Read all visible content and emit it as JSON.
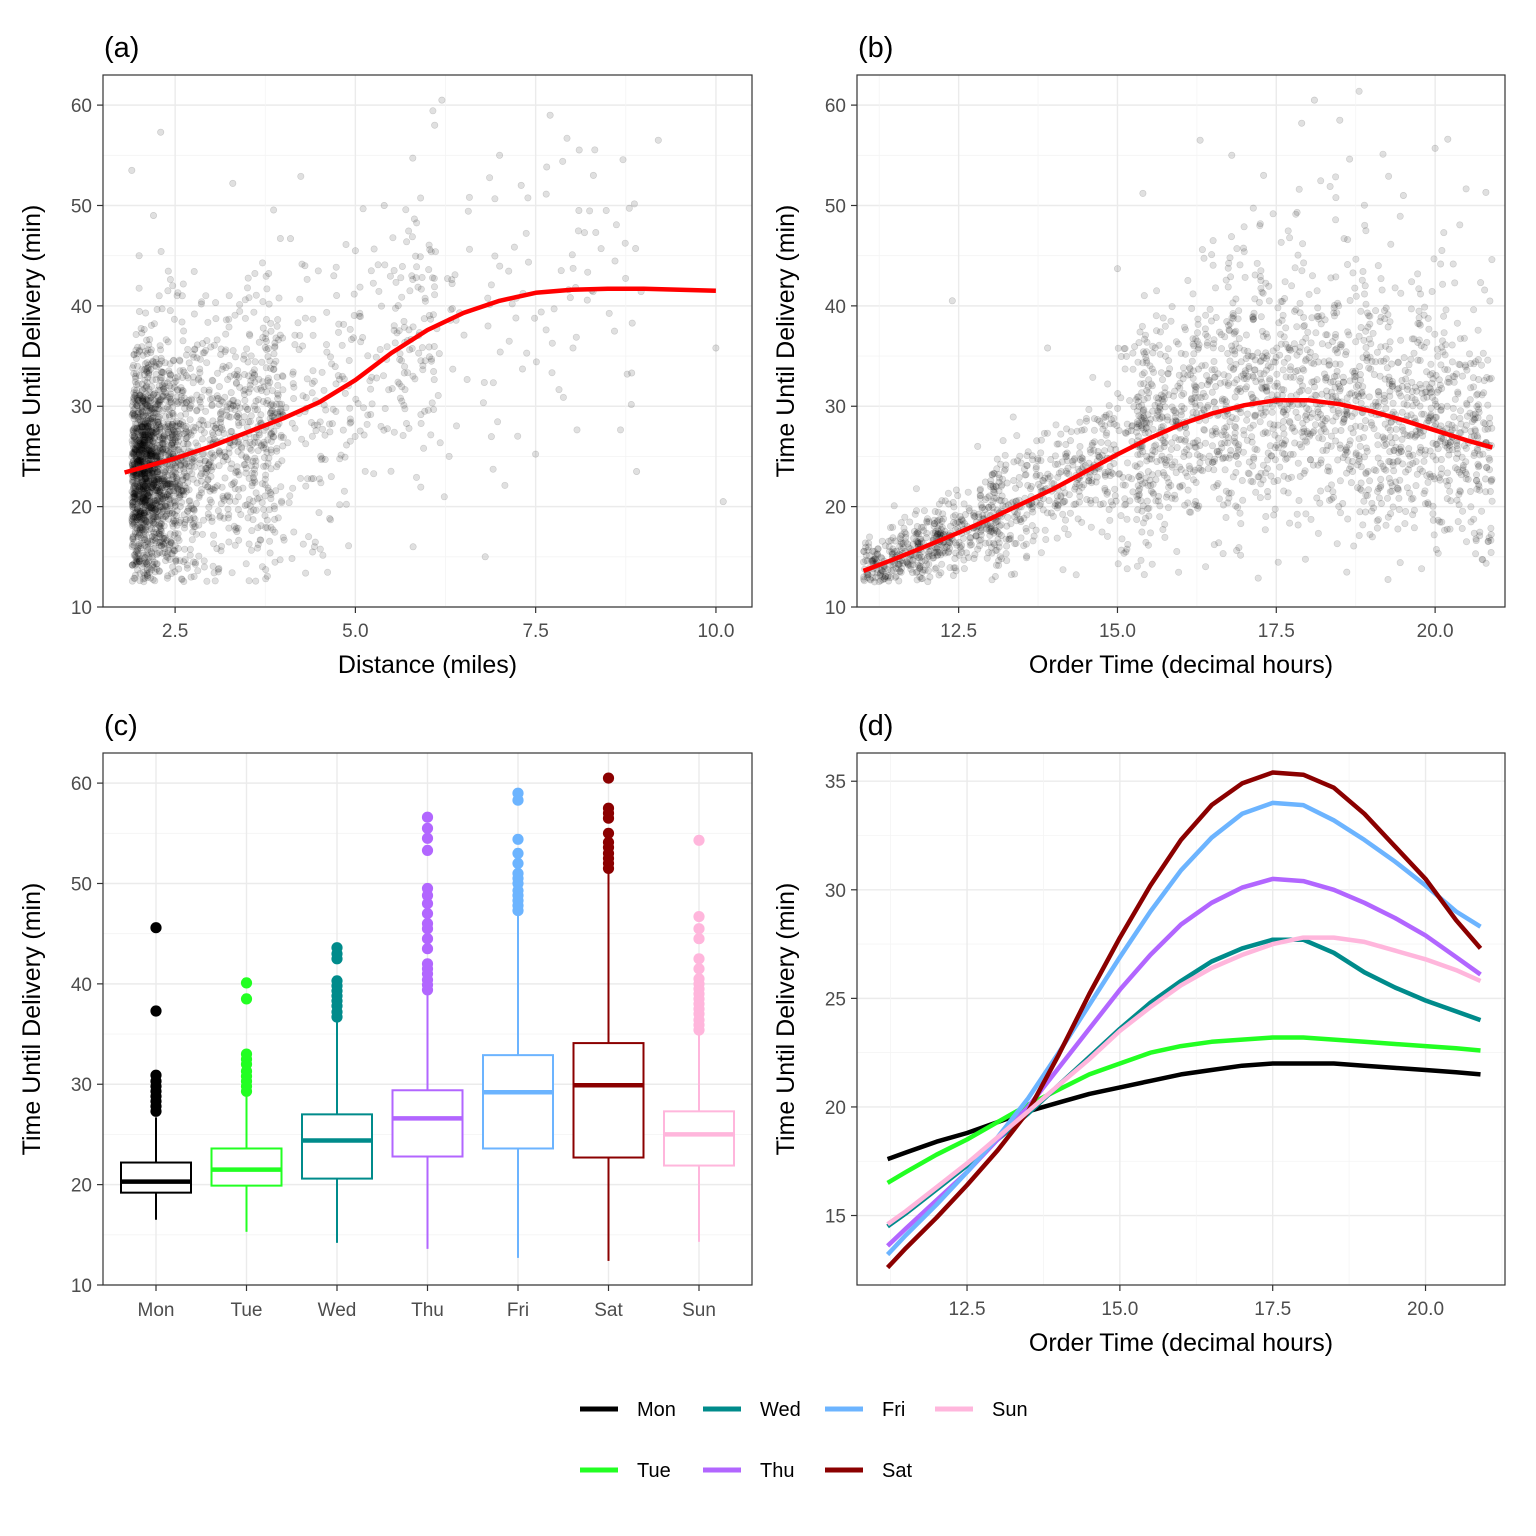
{
  "chart_data": [
    {
      "panel": "(a)",
      "type": "scatter",
      "xlabel": "Distance (miles)",
      "ylabel": "Time Until Delivery (min)",
      "xlim": [
        1.5,
        10.5
      ],
      "ylim": [
        10,
        63
      ],
      "xticks": [
        "2.5",
        "5.0",
        "7.5",
        "10.0"
      ],
      "xtick_values": [
        2.5,
        5.0,
        7.5,
        10.0
      ],
      "yticks": [
        "10",
        "20",
        "30",
        "40",
        "50",
        "60"
      ],
      "ytick_values": [
        10,
        20,
        30,
        40,
        50,
        60
      ],
      "grid": true,
      "point_color": "#000000",
      "point_alpha": 0.12,
      "smooth_color": "#ff0000",
      "smooth": {
        "x": [
          1.8,
          2.5,
          3.0,
          3.5,
          4.0,
          4.5,
          5.0,
          5.5,
          6.0,
          6.5,
          7.0,
          7.5,
          8.0,
          8.5,
          9.0,
          9.5,
          10.0
        ],
        "y": [
          23.4,
          24.8,
          26.0,
          27.4,
          28.8,
          30.4,
          32.6,
          35.3,
          37.6,
          39.3,
          40.5,
          41.3,
          41.6,
          41.7,
          41.7,
          41.6,
          41.5
        ]
      },
      "points_sample": {
        "x": [
          2.3,
          1.9,
          2.2,
          2.0,
          2.6,
          4.1,
          4.3,
          5.4,
          6.1,
          6.2,
          7.0,
          7.3,
          7.7,
          8.3,
          9.2,
          10.0,
          10.1,
          6.3,
          6.8,
          5.8,
          3.3,
          2.4,
          4.7,
          5.0,
          8.1,
          8.9
        ],
        "y": [
          57.3,
          53.5,
          49.0,
          45.0,
          41.0,
          46.7,
          44.0,
          50.0,
          58.0,
          60.5,
          55.0,
          52.0,
          59.0,
          53.0,
          56.5,
          35.8,
          20.5,
          25.0,
          15.0,
          16.0,
          52.2,
          41.5,
          43.0,
          45.5,
          49.5,
          23.5
        ]
      }
    },
    {
      "panel": "(b)",
      "type": "scatter",
      "xlabel": "Order Time (decimal hours)",
      "ylabel": "Time Until Delivery (min)",
      "xlim": [
        10.9,
        21.1
      ],
      "ylim": [
        10,
        63
      ],
      "xticks": [
        "12.5",
        "15.0",
        "17.5",
        "20.0"
      ],
      "xtick_values": [
        12.5,
        15.0,
        17.5,
        20.0
      ],
      "yticks": [
        "10",
        "20",
        "30",
        "40",
        "50",
        "60"
      ],
      "ytick_values": [
        10,
        20,
        30,
        40,
        50,
        60
      ],
      "grid": true,
      "point_color": "#000000",
      "point_alpha": 0.12,
      "smooth_color": "#ff0000",
      "smooth": {
        "x": [
          11.0,
          11.5,
          12.0,
          12.5,
          13.0,
          13.5,
          14.0,
          14.5,
          15.0,
          15.5,
          16.0,
          16.5,
          17.0,
          17.5,
          18.0,
          18.5,
          19.0,
          19.5,
          20.0,
          20.5,
          20.9
        ],
        "y": [
          13.6,
          14.8,
          16.1,
          17.4,
          18.8,
          20.3,
          21.8,
          23.5,
          25.2,
          26.8,
          28.2,
          29.3,
          30.1,
          30.6,
          30.6,
          30.2,
          29.5,
          28.6,
          27.6,
          26.6,
          25.9
        ]
      },
      "points_sample": {
        "x": [
          12.4,
          16.3,
          17.9,
          18.1,
          18.5,
          20.0,
          20.2,
          20.8,
          17.3,
          16.8,
          15.4,
          19.5,
          13.9,
          12.8,
          15.0,
          18.9
        ],
        "y": [
          40.5,
          56.5,
          58.2,
          60.5,
          58.5,
          55.7,
          56.6,
          51.3,
          53.0,
          55.0,
          51.2,
          51.0,
          35.8,
          26.0,
          43.7,
          42.0
        ]
      }
    },
    {
      "panel": "(c)",
      "type": "box",
      "xlabel": "",
      "ylabel": "Time Until Delivery (min)",
      "ylim": [
        10,
        63
      ],
      "yticks": [
        "10",
        "20",
        "30",
        "40",
        "50",
        "60"
      ],
      "ytick_values": [
        10,
        20,
        30,
        40,
        50,
        60
      ],
      "grid": true,
      "categories": [
        "Mon",
        "Tue",
        "Wed",
        "Thu",
        "Fri",
        "Sat",
        "Sun"
      ],
      "colors": [
        "#000000",
        "#22ff22",
        "#008b8b",
        "#b266ff",
        "#6cb4ff",
        "#8b0000",
        "#ffb6dc"
      ],
      "boxes": [
        {
          "min": 16.5,
          "q1": 19.2,
          "median": 20.3,
          "q3": 22.2,
          "max": 26.7,
          "outliers": [
            27.3,
            27.8,
            28.3,
            28.8,
            29.3,
            29.8,
            30.3,
            30.9,
            37.3,
            45.6
          ]
        },
        {
          "min": 15.3,
          "q1": 19.9,
          "median": 21.5,
          "q3": 23.6,
          "max": 28.8,
          "outliers": [
            29.3,
            29.8,
            30.3,
            30.8,
            31.3,
            32.0,
            32.5,
            33.0,
            38.5,
            40.1
          ]
        },
        {
          "min": 14.2,
          "q1": 20.6,
          "median": 24.4,
          "q3": 27.0,
          "max": 36.2,
          "outliers": [
            36.7,
            37.2,
            37.8,
            38.3,
            38.8,
            39.3,
            39.8,
            40.3,
            42.5,
            43.0,
            43.6
          ]
        },
        {
          "min": 13.6,
          "q1": 22.8,
          "median": 26.6,
          "q3": 29.4,
          "max": 38.9,
          "outliers": [
            39.4,
            39.9,
            40.4,
            41.0,
            41.5,
            42.0,
            43.5,
            44.5,
            45.5,
            46.0,
            47.0,
            48.0,
            48.8,
            49.5,
            53.3,
            54.5,
            55.5,
            56.6
          ]
        },
        {
          "min": 12.7,
          "q1": 23.6,
          "median": 29.2,
          "q3": 32.9,
          "max": 46.8,
          "outliers": [
            47.3,
            47.8,
            48.3,
            48.8,
            49.3,
            50.0,
            50.5,
            51.0,
            52.0,
            53.0,
            54.4,
            58.3,
            59.0
          ]
        },
        {
          "min": 12.4,
          "q1": 22.7,
          "median": 29.9,
          "q3": 34.1,
          "max": 51.0,
          "outliers": [
            51.5,
            52.0,
            52.5,
            53.0,
            53.6,
            54.1,
            55.0,
            56.5,
            57.0,
            57.5,
            60.5
          ]
        },
        {
          "min": 14.3,
          "q1": 21.9,
          "median": 25.0,
          "q3": 27.3,
          "max": 34.9,
          "outliers": [
            35.4,
            35.9,
            36.4,
            37.0,
            37.5,
            38.0,
            38.5,
            39.0,
            39.5,
            40.0,
            40.5,
            41.5,
            42.5,
            44.5,
            45.5,
            46.7,
            54.3
          ]
        }
      ]
    },
    {
      "panel": "(d)",
      "type": "line",
      "xlabel": "Order Time (decimal hours)",
      "ylabel": "Time Until Delivery (min)",
      "xlim": [
        10.7,
        21.3
      ],
      "ylim": [
        11.8,
        36.3
      ],
      "xticks": [
        "12.5",
        "15.0",
        "17.5",
        "20.0"
      ],
      "xtick_values": [
        12.5,
        15.0,
        17.5,
        20.0
      ],
      "yticks": [
        "15",
        "20",
        "25",
        "30",
        "35"
      ],
      "ytick_values": [
        15,
        20,
        25,
        30,
        35
      ],
      "grid": true,
      "legend": "bottom",
      "x": [
        11.2,
        11.5,
        12.0,
        12.5,
        13.0,
        13.5,
        14.0,
        14.5,
        15.0,
        15.5,
        16.0,
        16.5,
        17.0,
        17.5,
        18.0,
        18.5,
        19.0,
        19.5,
        20.0,
        20.5,
        20.9
      ],
      "series": [
        {
          "name": "Mon",
          "color": "#000000",
          "values": [
            17.6,
            17.9,
            18.4,
            18.8,
            19.3,
            19.8,
            20.2,
            20.6,
            20.9,
            21.2,
            21.5,
            21.7,
            21.9,
            22.0,
            22.0,
            22.0,
            21.9,
            21.8,
            21.7,
            21.6,
            21.5
          ]
        },
        {
          "name": "Tue",
          "color": "#22ff22",
          "values": [
            16.5,
            17.0,
            17.8,
            18.5,
            19.3,
            20.1,
            20.8,
            21.5,
            22.0,
            22.5,
            22.8,
            23.0,
            23.1,
            23.2,
            23.2,
            23.1,
            23.0,
            22.9,
            22.8,
            22.7,
            22.6
          ]
        },
        {
          "name": "Wed",
          "color": "#008b8b",
          "values": [
            14.5,
            15.1,
            16.2,
            17.3,
            18.5,
            19.7,
            21.0,
            22.3,
            23.6,
            24.8,
            25.8,
            26.7,
            27.3,
            27.7,
            27.7,
            27.1,
            26.2,
            25.5,
            24.9,
            24.4,
            24.0
          ]
        },
        {
          "name": "Thu",
          "color": "#b266ff",
          "values": [
            13.6,
            14.4,
            15.7,
            17.0,
            18.5,
            20.0,
            21.8,
            23.6,
            25.4,
            27.0,
            28.4,
            29.4,
            30.1,
            30.5,
            30.4,
            30.0,
            29.4,
            28.7,
            27.9,
            26.9,
            26.1
          ]
        },
        {
          "name": "Fri",
          "color": "#6cb4ff",
          "values": [
            13.2,
            14.1,
            15.5,
            17.0,
            18.6,
            20.4,
            22.5,
            24.7,
            26.9,
            29.0,
            30.9,
            32.4,
            33.5,
            34.0,
            33.9,
            33.2,
            32.3,
            31.3,
            30.2,
            29.0,
            28.3
          ]
        },
        {
          "name": "Sat",
          "color": "#8b0000",
          "values": [
            12.6,
            13.5,
            14.9,
            16.4,
            18.0,
            19.8,
            22.4,
            25.2,
            27.8,
            30.2,
            32.3,
            33.9,
            34.9,
            35.4,
            35.3,
            34.7,
            33.5,
            32.0,
            30.5,
            28.6,
            27.3
          ]
        },
        {
          "name": "Sun",
          "color": "#ffb6dc",
          "values": [
            14.6,
            15.2,
            16.3,
            17.4,
            18.6,
            19.8,
            21.0,
            22.2,
            23.5,
            24.6,
            25.6,
            26.4,
            27.0,
            27.5,
            27.8,
            27.8,
            27.6,
            27.2,
            26.8,
            26.3,
            25.8
          ]
        }
      ]
    }
  ]
}
